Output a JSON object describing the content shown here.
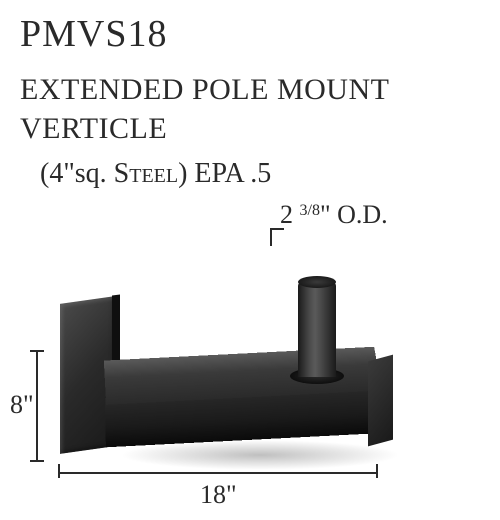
{
  "model_number": "PMVS18",
  "product_title_line1": "EXTENDED POLE MOUNT",
  "product_title_line2": "VERTICLE",
  "sub_spec_prefix": "(4\"sq. ",
  "sub_spec_steel": "Steel",
  "sub_spec_suffix": ") EPA .5",
  "dimensions": {
    "od_prefix": "2 ",
    "od_fraction": "3/8",
    "od_suffix": "\" O.D.",
    "height": "8\"",
    "width": "18\""
  },
  "colors": {
    "text": "#2a2a2a",
    "background": "#ffffff",
    "product_dark": "#1a1a1a",
    "product_mid": "#3a3a3a",
    "product_light": "#5a5a5a"
  },
  "typography": {
    "family": "Georgia, Times New Roman, serif",
    "model_size": 38,
    "title_size": 30,
    "spec_size": 28,
    "label_size": 26
  }
}
